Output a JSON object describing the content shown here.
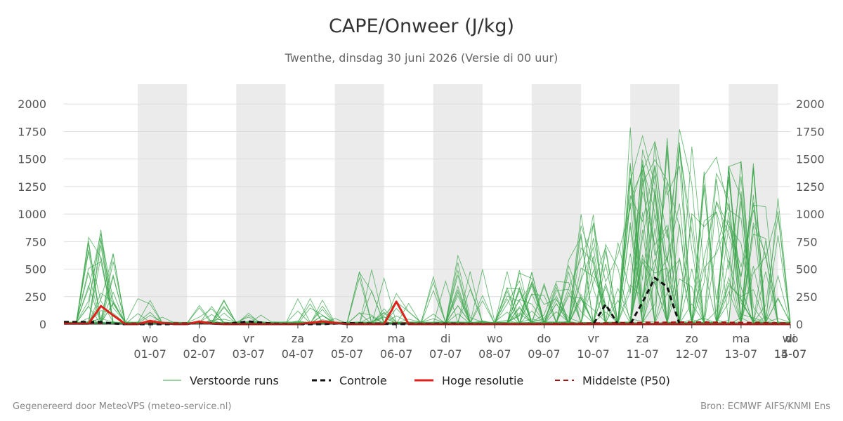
{
  "chart_title": "CAPE/Onweer (J/kg)",
  "subtitle": "Twenthe, dinsdag 30 juni 2026 (Versie di 00 uur)",
  "footer_left": "Gegenereerd door MeteoVPS (meteo-service.nl)",
  "footer_right": "Bron: ECMWF AIFS/KNMI Ens",
  "legend": {
    "ensemble": "Verstoorde runs",
    "control": "Controle",
    "hires": "Hoge resolutie",
    "median": "Middelste (P50)"
  },
  "colors": {
    "ensemble": "#3aa64a",
    "control": "#111111",
    "hires": "#e0201a",
    "median": "#aa1111",
    "shade": "#ebebeb",
    "grid": "#dddddd"
  },
  "chart_data": {
    "type": "line",
    "title": "CAPE/Onweer (J/kg)",
    "x_unit": "days since 30-06 00 UTC",
    "x_range": [
      -0.75,
      14.0
    ],
    "ylim": [
      0,
      2180
    ],
    "yticks": [
      0,
      250,
      500,
      750,
      1000,
      1250,
      1500,
      1750,
      2000
    ],
    "grid": true,
    "y_axis_both_sides": true,
    "xticks": [
      {
        "x": 1,
        "day": "wo",
        "date": "01-07"
      },
      {
        "x": 2,
        "day": "do",
        "date": "02-07"
      },
      {
        "x": 3,
        "day": "vr",
        "date": "03-07"
      },
      {
        "x": 4,
        "day": "za",
        "date": "04-07"
      },
      {
        "x": 5,
        "day": "zo",
        "date": "05-07"
      },
      {
        "x": 6,
        "day": "ma",
        "date": "06-07"
      },
      {
        "x": 7,
        "day": "di",
        "date": "07-07"
      },
      {
        "x": 8,
        "day": "wo",
        "date": "08-07"
      },
      {
        "x": 9,
        "day": "do",
        "date": "09-07"
      },
      {
        "x": 10,
        "day": "vr",
        "date": "10-07"
      },
      {
        "x": 11,
        "day": "za",
        "date": "11-07"
      },
      {
        "x": 12,
        "day": "zo",
        "date": "12-07"
      },
      {
        "x": 13,
        "day": "ma",
        "date": "13-07"
      },
      {
        "x": 14,
        "day": "di",
        "date": "14-07"
      },
      {
        "x": 15,
        "day": "wo",
        "date": "15-07"
      }
    ],
    "shaded_bands": [
      [
        0.75,
        1.75
      ],
      [
        2.75,
        3.75
      ],
      [
        4.75,
        5.75
      ],
      [
        6.75,
        7.75
      ],
      [
        8.75,
        9.75
      ],
      [
        10.75,
        11.75
      ],
      [
        12.75,
        13.75
      ]
    ],
    "legend_position": "bottom",
    "series": [
      {
        "name": "Controle",
        "style": "dashed",
        "x": [
          -0.75,
          0.0,
          0.25,
          0.5,
          0.75,
          1.0,
          1.25,
          1.5,
          1.75,
          2.0,
          2.25,
          2.5,
          3.0,
          3.5,
          4.0,
          4.5,
          5.0,
          5.5,
          6.0,
          7.0,
          8.0,
          9.0,
          9.75,
          10.0,
          10.25,
          10.5,
          10.75,
          11.0,
          11.25,
          11.5,
          11.75,
          12.0,
          12.25,
          12.5,
          13.0,
          13.5,
          14.0
        ],
        "y": [
          20,
          20,
          5,
          0,
          0,
          0,
          0,
          0,
          0,
          20,
          10,
          0,
          25,
          5,
          0,
          0,
          10,
          5,
          0,
          5,
          0,
          0,
          0,
          0,
          180,
          0,
          0,
          200,
          420,
          340,
          0,
          0,
          0,
          0,
          0,
          0,
          0
        ]
      },
      {
        "name": "Hoge resolutie",
        "style": "solid",
        "x": [
          -0.75,
          -0.5,
          -0.25,
          0.0,
          0.25,
          0.5,
          0.75,
          1.0,
          1.25,
          1.5,
          1.75,
          2.0,
          2.25,
          2.5,
          3.0,
          3.5,
          4.0,
          4.5,
          5.0,
          5.25,
          5.5,
          5.75,
          6.0,
          6.25,
          7.0,
          8.0,
          9.0,
          10.0,
          11.0,
          12.0,
          13.0,
          14.0
        ],
        "y": [
          5,
          5,
          5,
          165,
          80,
          0,
          0,
          30,
          10,
          0,
          0,
          25,
          5,
          0,
          0,
          0,
          0,
          25,
          0,
          0,
          0,
          0,
          205,
          0,
          0,
          0,
          0,
          0,
          0,
          0,
          0,
          0
        ]
      },
      {
        "name": "Middelste (P50)",
        "style": "dashed",
        "x": [
          -0.75,
          0.0,
          0.25,
          1.0,
          2.0,
          3.0,
          4.0,
          5.0,
          6.0,
          7.0,
          8.0,
          9.0,
          10.0,
          11.0,
          12.0,
          13.0,
          14.0
        ],
        "y": [
          10,
          10,
          5,
          10,
          10,
          5,
          0,
          5,
          10,
          5,
          5,
          5,
          10,
          15,
          20,
          15,
          10
        ]
      }
    ]
  }
}
